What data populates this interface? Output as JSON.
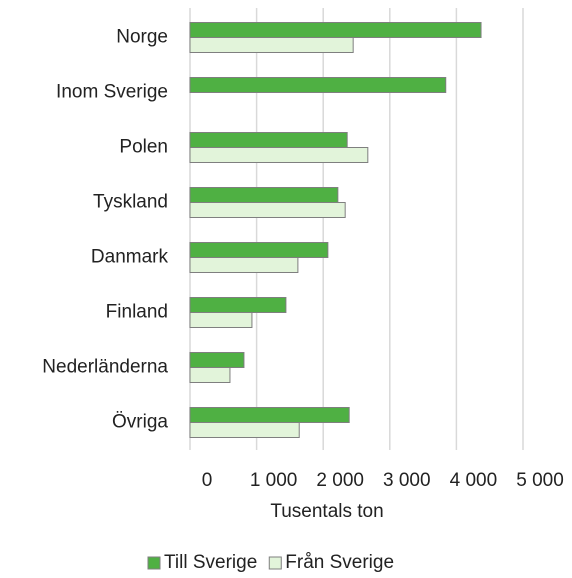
{
  "chart_data": {
    "type": "bar",
    "orientation": "horizontal",
    "categories": [
      "Norge",
      "Inom Sverige",
      "Polen",
      "Tyskland",
      "Danmark",
      "Finland",
      "Nederländerna",
      "Övriga"
    ],
    "series": [
      {
        "name": "Till Sverige",
        "color": "#4fb043",
        "values": [
          4370,
          3840,
          2360,
          2220,
          2070,
          1440,
          810,
          2390
        ]
      },
      {
        "name": "Från Sverige",
        "color": "#e2f4da",
        "values": [
          2450,
          null,
          2670,
          2330,
          1620,
          930,
          600,
          1640
        ]
      }
    ],
    "x_label": "Tusentals ton",
    "xlim": [
      0,
      5000
    ],
    "xticks": [
      0,
      {
        "value": 1000,
        "label": "1 000"
      },
      {
        "value": 2000,
        "label": "2 000"
      },
      {
        "value": 3000,
        "label": "3 000"
      },
      {
        "value": 4000,
        "label": "4 000"
      },
      {
        "value": 5000,
        "label": "5 000"
      }
    ],
    "grid": true,
    "legend": "bottom"
  }
}
